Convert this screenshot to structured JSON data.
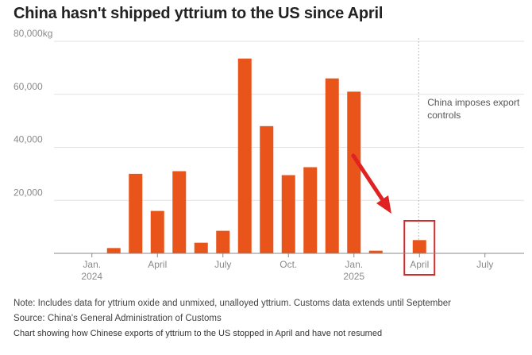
{
  "title": "China hasn't shipped yttrium to the US since April",
  "chart_data": {
    "type": "bar",
    "title": "China hasn't shipped yttrium to the US since April",
    "ylabel": "kg",
    "ylim": [
      0,
      80000
    ],
    "y_ticks": [
      {
        "value": 20000,
        "label": "20,000"
      },
      {
        "value": 40000,
        "label": "40,000"
      },
      {
        "value": 60000,
        "label": "60,000"
      },
      {
        "value": 80000,
        "label": "80,000kg"
      }
    ],
    "categories": [
      "2024-01",
      "2024-02",
      "2024-03",
      "2024-04",
      "2024-05",
      "2024-06",
      "2024-07",
      "2024-08",
      "2024-09",
      "2024-10",
      "2024-11",
      "2024-12",
      "2025-01",
      "2025-02",
      "2025-03",
      "2025-04",
      "2025-05",
      "2025-06",
      "2025-07",
      "2025-08",
      "2025-09"
    ],
    "values": [
      0,
      2000,
      30000,
      16000,
      31000,
      4000,
      8500,
      73500,
      48000,
      29500,
      32500,
      66000,
      61000,
      1000,
      0,
      5000,
      0,
      0,
      0,
      0,
      0
    ],
    "x_ticks": [
      {
        "index": 0,
        "line1": "Jan.",
        "line2": "2024"
      },
      {
        "index": 3,
        "line1": "April",
        "line2": ""
      },
      {
        "index": 6,
        "line1": "July",
        "line2": ""
      },
      {
        "index": 9,
        "line1": "Oct.",
        "line2": ""
      },
      {
        "index": 12,
        "line1": "Jan.",
        "line2": "2025"
      },
      {
        "index": 15,
        "line1": "April",
        "line2": ""
      },
      {
        "index": 18,
        "line1": "July",
        "line2": ""
      }
    ],
    "annotation": {
      "index": 15,
      "line1": "China imposes export",
      "line2": "controls"
    },
    "highlight_index": 15,
    "colors": {
      "bar": "#E8541A",
      "highlight_box": "#D42A2A",
      "arrow": "#E02222",
      "grid": "#E2E2E2",
      "axis": "#888888",
      "tick_text": "#8A8A8A",
      "annotation_line": "#BBBBBB"
    }
  },
  "footer": {
    "note": "Note: Includes data for yttrium oxide and unmixed, unalloyed yttrium. Customs data extends until September",
    "source": "Source: China's General Administration of Customs",
    "alt": "Chart showing how Chinese exports of yttrium to the US stopped in April and have not resumed"
  }
}
